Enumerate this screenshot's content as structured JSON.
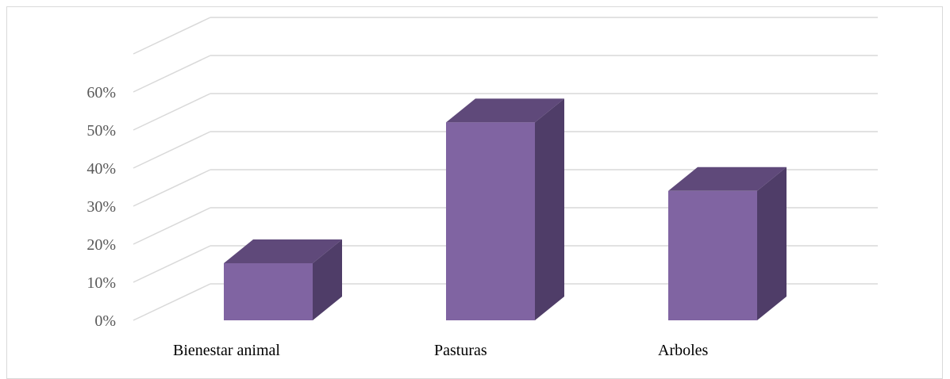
{
  "chart_data": {
    "type": "bar",
    "style": "3d-column",
    "categories": [
      "Bienestar animal",
      "Pasturas",
      "Arboles"
    ],
    "values": [
      15,
      52,
      34
    ],
    "unit": "%",
    "ylim": [
      0,
      60
    ],
    "yticks": [
      "0%",
      "10%",
      "20%",
      "30%",
      "40%",
      "50%",
      "60%"
    ],
    "grid": true,
    "legend": "none",
    "colors": {
      "front": "#8064a2",
      "top": "#5f497a",
      "side": "#4f3d68",
      "grid": "#d9d9d9",
      "frame": "#d9d9d9"
    }
  }
}
